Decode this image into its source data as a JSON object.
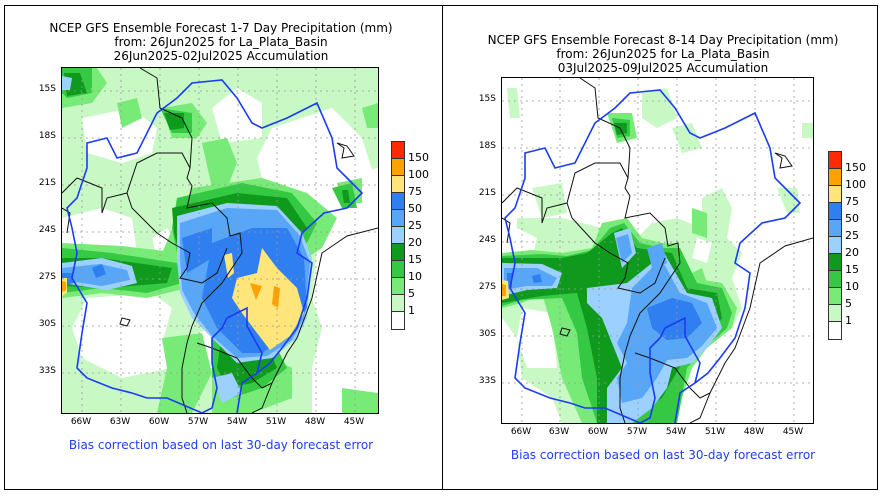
{
  "panels": [
    {
      "title_line1": "NCEP GFS Ensemble Forecast 1-7 Day Precipitation (mm)",
      "title_line2": "from: 26Jun2025   for La_Plata_Basin",
      "title_line3": "26Jun2025-02Jul2025 Accumulation",
      "footnote": "Bias correction based on last 30-day forecast error"
    },
    {
      "title_line1": "NCEP GFS Ensemble Forecast 8-14 Day Precipitation (mm)",
      "title_line2": "from: 26Jun2025   for La_Plata_Basin",
      "title_line3": "03Jul2025-09Jul2025 Accumulation",
      "footnote": "Bias correction based on last 30-day forecast error"
    }
  ],
  "axes": {
    "lat_labels": [
      "15S",
      "18S",
      "21S",
      "24S",
      "27S",
      "30S",
      "33S"
    ],
    "lon_labels": [
      "66W",
      "63W",
      "60W",
      "57W",
      "54W",
      "51W",
      "48W",
      "45W"
    ],
    "lat_range": [
      -35.5,
      -13.5
    ],
    "lon_range": [
      -67.5,
      -44.3
    ]
  },
  "legend": {
    "labels": [
      "150",
      "100",
      "75",
      "50",
      "25",
      "20",
      "15",
      "10",
      "5",
      "1"
    ],
    "colors": [
      "#ff2a00",
      "#ffa200",
      "#ffe57a",
      "#2f7ff0",
      "#57a6f7",
      "#9bd0ff",
      "#0f9a1e",
      "#35c943",
      "#78ea78",
      "#c8f8c4",
      "#ffffff"
    ]
  },
  "colors": {
    "basin_outline": "#1a3cf2",
    "country_border": "#111111",
    "footnote_text": "#1f3ff0"
  }
}
